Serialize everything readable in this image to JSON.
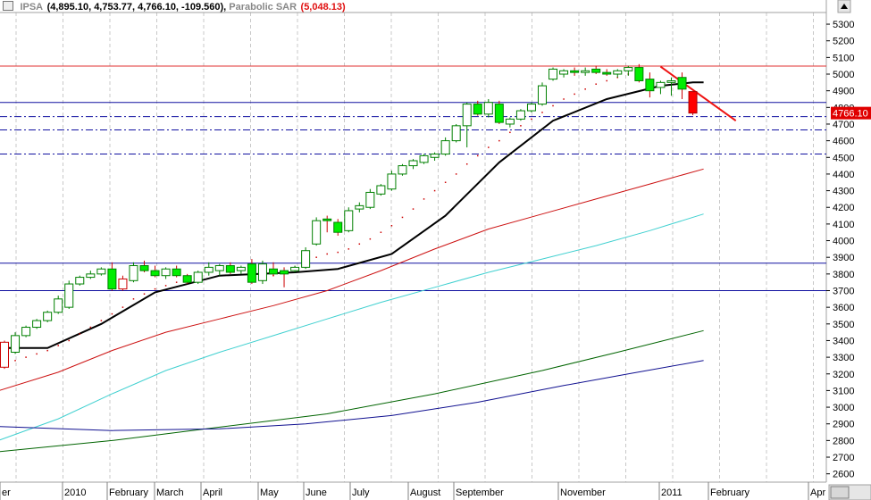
{
  "header": {
    "symbol": "IPSA",
    "ohlc": "(4,895.10, 4,753.77, 4,766.10, -109.560)",
    "indicator_name": "Parabolic SAR",
    "indicator_value": "(5,048.13)"
  },
  "chart_data": {
    "type": "candlestick",
    "y_ticks": [
      5300,
      5200,
      5100,
      5000,
      4900,
      4800,
      4700,
      4600,
      4500,
      4400,
      4300,
      4200,
      4100,
      4000,
      3900,
      3800,
      3700,
      3600,
      3500,
      3400,
      3300,
      3200,
      3100,
      3000,
      2900,
      2800,
      2700,
      2600
    ],
    "ylim": [
      2550,
      5370
    ],
    "x_tick_labels": [
      "er",
      "2010",
      "February",
      "March",
      "April",
      "May",
      "June",
      "July",
      "August",
      "September",
      "November",
      "2011",
      "February",
      "Apr"
    ],
    "last_price_label": "4766.10",
    "horizontal_levels": [
      {
        "value": 5048,
        "style": "solid",
        "color": "#e03030"
      },
      {
        "value": 4830,
        "style": "solid",
        "color": "#1010a0"
      },
      {
        "value": 4745,
        "style": "dashdot",
        "color": "#1010a0"
      },
      {
        "value": 4665,
        "style": "dashdot",
        "color": "#1010a0"
      },
      {
        "value": 4520,
        "style": "dashdot",
        "color": "#1010a0"
      },
      {
        "value": 3865,
        "style": "solid",
        "color": "#1010a0"
      },
      {
        "value": 3700,
        "style": "solid",
        "color": "#1010a0"
      }
    ],
    "candles": [
      {
        "o": 3390,
        "h": 3400,
        "l": 3230,
        "c": 3240
      },
      {
        "o": 3330,
        "h": 3450,
        "l": 3320,
        "c": 3430
      },
      {
        "o": 3430,
        "h": 3490,
        "l": 3420,
        "c": 3480
      },
      {
        "o": 3480,
        "h": 3530,
        "l": 3470,
        "c": 3520
      },
      {
        "o": 3520,
        "h": 3580,
        "l": 3510,
        "c": 3570
      },
      {
        "o": 3570,
        "h": 3670,
        "l": 3560,
        "c": 3650
      },
      {
        "o": 3600,
        "h": 3760,
        "l": 3590,
        "c": 3740
      },
      {
        "o": 3740,
        "h": 3790,
        "l": 3730,
        "c": 3780
      },
      {
        "o": 3780,
        "h": 3820,
        "l": 3770,
        "c": 3800
      },
      {
        "o": 3800,
        "h": 3840,
        "l": 3790,
        "c": 3830
      },
      {
        "o": 3830,
        "h": 3870,
        "l": 3700,
        "c": 3710
      },
      {
        "o": 3770,
        "h": 3790,
        "l": 3700,
        "c": 3710
      },
      {
        "o": 3760,
        "h": 3870,
        "l": 3750,
        "c": 3850
      },
      {
        "o": 3850,
        "h": 3880,
        "l": 3810,
        "c": 3820
      },
      {
        "o": 3820,
        "h": 3850,
        "l": 3780,
        "c": 3790
      },
      {
        "o": 3790,
        "h": 3840,
        "l": 3770,
        "c": 3830
      },
      {
        "o": 3830,
        "h": 3850,
        "l": 3780,
        "c": 3790
      },
      {
        "o": 3790,
        "h": 3800,
        "l": 3740,
        "c": 3750
      },
      {
        "o": 3750,
        "h": 3820,
        "l": 3740,
        "c": 3810
      },
      {
        "o": 3810,
        "h": 3870,
        "l": 3790,
        "c": 3840
      },
      {
        "o": 3820,
        "h": 3860,
        "l": 3790,
        "c": 3850
      },
      {
        "o": 3850,
        "h": 3870,
        "l": 3800,
        "c": 3810
      },
      {
        "o": 3820,
        "h": 3850,
        "l": 3800,
        "c": 3840
      },
      {
        "o": 3860,
        "h": 3890,
        "l": 3740,
        "c": 3750
      },
      {
        "o": 3760,
        "h": 3880,
        "l": 3740,
        "c": 3860
      },
      {
        "o": 3830,
        "h": 3870,
        "l": 3790,
        "c": 3800
      },
      {
        "o": 3820,
        "h": 3840,
        "l": 3720,
        "c": 3800
      },
      {
        "o": 3820,
        "h": 3850,
        "l": 3810,
        "c": 3840
      },
      {
        "o": 3840,
        "h": 3960,
        "l": 3830,
        "c": 3940
      },
      {
        "o": 3980,
        "h": 4140,
        "l": 3970,
        "c": 4120
      },
      {
        "o": 4130,
        "h": 4150,
        "l": 4050,
        "c": 4120
      },
      {
        "o": 4110,
        "h": 4130,
        "l": 4030,
        "c": 4050
      },
      {
        "o": 4060,
        "h": 4200,
        "l": 4050,
        "c": 4180
      },
      {
        "o": 4190,
        "h": 4230,
        "l": 4170,
        "c": 4210
      },
      {
        "o": 4200,
        "h": 4310,
        "l": 4190,
        "c": 4290
      },
      {
        "o": 4280,
        "h": 4340,
        "l": 4270,
        "c": 4330
      },
      {
        "o": 4310,
        "h": 4420,
        "l": 4300,
        "c": 4400
      },
      {
        "o": 4400,
        "h": 4460,
        "l": 4390,
        "c": 4450
      },
      {
        "o": 4450,
        "h": 4490,
        "l": 4430,
        "c": 4480
      },
      {
        "o": 4470,
        "h": 4520,
        "l": 4460,
        "c": 4510
      },
      {
        "o": 4500,
        "h": 4530,
        "l": 4480,
        "c": 4520
      },
      {
        "o": 4520,
        "h": 4620,
        "l": 4510,
        "c": 4600
      },
      {
        "o": 4600,
        "h": 4700,
        "l": 4590,
        "c": 4690
      },
      {
        "o": 4690,
        "h": 4830,
        "l": 4560,
        "c": 4820
      },
      {
        "o": 4820,
        "h": 4840,
        "l": 4750,
        "c": 4760
      },
      {
        "o": 4760,
        "h": 4850,
        "l": 4740,
        "c": 4830
      },
      {
        "o": 4820,
        "h": 4840,
        "l": 4700,
        "c": 4710
      },
      {
        "o": 4700,
        "h": 4740,
        "l": 4680,
        "c": 4730
      },
      {
        "o": 4730,
        "h": 4790,
        "l": 4720,
        "c": 4780
      },
      {
        "o": 4780,
        "h": 4830,
        "l": 4770,
        "c": 4820
      },
      {
        "o": 4820,
        "h": 4950,
        "l": 4810,
        "c": 4930
      },
      {
        "o": 4970,
        "h": 5040,
        "l": 4960,
        "c": 5030
      },
      {
        "o": 5000,
        "h": 5030,
        "l": 4980,
        "c": 5020
      },
      {
        "o": 5020,
        "h": 5040,
        "l": 4990,
        "c": 5010
      },
      {
        "o": 5010,
        "h": 5040,
        "l": 4990,
        "c": 5020
      },
      {
        "o": 5030,
        "h": 5050,
        "l": 5000,
        "c": 5010
      },
      {
        "o": 5010,
        "h": 5030,
        "l": 4990,
        "c": 5000
      },
      {
        "o": 5000,
        "h": 5030,
        "l": 4980,
        "c": 5020
      },
      {
        "o": 5020,
        "h": 5050,
        "l": 4990,
        "c": 5040
      },
      {
        "o": 5040,
        "h": 5060,
        "l": 4950,
        "c": 4960
      },
      {
        "o": 4970,
        "h": 5010,
        "l": 4860,
        "c": 4900
      },
      {
        "o": 4920,
        "h": 4960,
        "l": 4880,
        "c": 4950
      },
      {
        "o": 4950,
        "h": 4980,
        "l": 4870,
        "c": 4960
      },
      {
        "o": 4980,
        "h": 5010,
        "l": 4850,
        "c": 4910
      },
      {
        "o": 4895.1,
        "h": 4895.1,
        "l": 4753.77,
        "c": 4766.1
      }
    ],
    "series": [
      {
        "color": "#000000",
        "width": 2,
        "points": [
          [
            -1,
            3355
          ],
          [
            4,
            3355
          ],
          [
            9,
            3500
          ],
          [
            14,
            3690
          ],
          [
            20,
            3790
          ],
          [
            27,
            3810
          ],
          [
            31,
            3830
          ],
          [
            36,
            3920
          ],
          [
            41,
            4150
          ],
          [
            46,
            4470
          ],
          [
            51,
            4720
          ],
          [
            56,
            4850
          ],
          [
            61,
            4930
          ],
          [
            64,
            4950
          ],
          [
            65,
            4950
          ]
        ]
      },
      {
        "color": "#cc1111",
        "width": 1,
        "points": [
          [
            -1,
            3090
          ],
          [
            5,
            3210
          ],
          [
            10,
            3340
          ],
          [
            15,
            3450
          ],
          [
            20,
            3530
          ],
          [
            25,
            3610
          ],
          [
            30,
            3700
          ],
          [
            35,
            3820
          ],
          [
            40,
            3950
          ],
          [
            45,
            4070
          ],
          [
            50,
            4160
          ],
          [
            55,
            4250
          ],
          [
            60,
            4340
          ],
          [
            65,
            4430
          ]
        ]
      },
      {
        "color": "#40d0d0",
        "width": 1,
        "points": [
          [
            -1,
            2790
          ],
          [
            5,
            2930
          ],
          [
            10,
            3080
          ],
          [
            15,
            3220
          ],
          [
            20,
            3330
          ],
          [
            25,
            3430
          ],
          [
            30,
            3530
          ],
          [
            35,
            3630
          ],
          [
            40,
            3720
          ],
          [
            45,
            3810
          ],
          [
            50,
            3890
          ],
          [
            55,
            3970
          ],
          [
            60,
            4060
          ],
          [
            65,
            4160
          ]
        ]
      },
      {
        "color": "#006400",
        "width": 1,
        "points": [
          [
            -1,
            2730
          ],
          [
            10,
            2800
          ],
          [
            20,
            2880
          ],
          [
            30,
            2960
          ],
          [
            40,
            3080
          ],
          [
            50,
            3220
          ],
          [
            57,
            3330
          ],
          [
            65,
            3460
          ]
        ]
      },
      {
        "color": "#101090",
        "width": 1,
        "points": [
          [
            -1,
            2885
          ],
          [
            10,
            2860
          ],
          [
            20,
            2870
          ],
          [
            28,
            2900
          ],
          [
            36,
            2950
          ],
          [
            44,
            3030
          ],
          [
            52,
            3130
          ],
          [
            58,
            3200
          ],
          [
            65,
            3280
          ]
        ]
      },
      {
        "color": "#ee1111",
        "width": 2,
        "points": [
          [
            61,
            5045
          ],
          [
            68,
            4720
          ]
        ]
      }
    ],
    "sar_dots": [
      [
        0,
        3260
      ],
      [
        1,
        3280
      ],
      [
        2,
        3300
      ],
      [
        3,
        3320
      ],
      [
        4,
        3340
      ],
      [
        5,
        3370
      ],
      [
        6,
        3400
      ],
      [
        7,
        3440
      ],
      [
        8,
        3480
      ],
      [
        9,
        3520
      ],
      [
        10,
        3560
      ],
      [
        11,
        3600
      ],
      [
        12,
        3650
      ],
      [
        13,
        3680
      ],
      [
        14,
        3710
      ],
      [
        15,
        3730
      ],
      [
        16,
        3750
      ],
      [
        24,
        3760
      ],
      [
        25,
        3790
      ],
      [
        26,
        3810
      ],
      [
        27,
        3840
      ],
      [
        28,
        3870
      ],
      [
        29,
        3900
      ],
      [
        30,
        3920
      ],
      [
        31,
        3930
      ],
      [
        32,
        3950
      ],
      [
        33,
        3980
      ],
      [
        34,
        4010
      ],
      [
        35,
        4050
      ],
      [
        36,
        4090
      ],
      [
        37,
        4140
      ],
      [
        38,
        4190
      ],
      [
        39,
        4250
      ],
      [
        40,
        4300
      ],
      [
        41,
        4350
      ],
      [
        42,
        4400
      ],
      [
        43,
        4460
      ],
      [
        44,
        4510
      ],
      [
        45,
        4560
      ],
      [
        46,
        4600
      ],
      [
        47,
        4650
      ],
      [
        48,
        4690
      ],
      [
        49,
        4730
      ],
      [
        50,
        4770
      ],
      [
        51,
        4810
      ],
      [
        52,
        4850
      ],
      [
        53,
        4880
      ],
      [
        54,
        4910
      ],
      [
        55,
        4940
      ],
      [
        56,
        4960
      ],
      [
        57,
        4980
      ],
      [
        58,
        5000
      ],
      [
        59,
        5020
      ]
    ]
  }
}
